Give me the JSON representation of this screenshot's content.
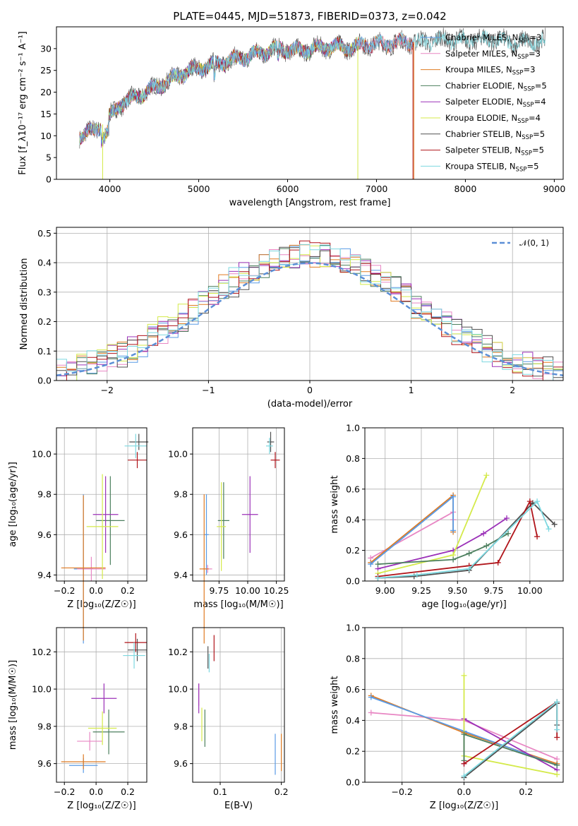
{
  "colors": {
    "Chabrier MILES": "#5a9be6",
    "Salpeter MILES": "#e887c4",
    "Kroupa MILES": "#e07b22",
    "Chabrier ELODIE": "#4c7f5e",
    "Salpeter ELODIE": "#9b30b8",
    "Kroupa ELODIE": "#d4ea4a",
    "Chabrier STELIB": "#505050",
    "Salpeter STELIB": "#b0141a",
    "Kroupa STELIB": "#7dd8e0",
    "gauss": "#5b8fd6"
  },
  "chart_data": [
    {
      "id": "spectrum",
      "type": "line",
      "title": "PLATE=0445, MJD=51873, FIBERID=0373, z=0.042",
      "xlabel": "wavelength [Angstrom, rest frame]",
      "ylabel": "Flux [f_λ10⁻¹⁷ erg cm⁻² s⁻¹ A⁻¹]",
      "xlim": [
        3400,
        9100
      ],
      "ylim": [
        0,
        35
      ],
      "xticks": [
        "4000",
        "5000",
        "6000",
        "7000",
        "8000",
        "9000"
      ],
      "yticks": [
        "0",
        "5",
        "10",
        "15",
        "20",
        "25",
        "30"
      ],
      "grid": false,
      "legend_position": "right",
      "legend": [
        {
          "name": "Chabrier MILES",
          "nssp": "3"
        },
        {
          "name": "Salpeter MILES",
          "nssp": "3"
        },
        {
          "name": "Kroupa MILES",
          "nssp": "3"
        },
        {
          "name": "Chabrier ELODIE",
          "nssp": "5"
        },
        {
          "name": "Salpeter ELODIE",
          "nssp": "4"
        },
        {
          "name": "Kroupa ELODIE",
          "nssp": "4"
        },
        {
          "name": "Chabrier STELIB",
          "nssp": "5"
        },
        {
          "name": "Salpeter STELIB",
          "nssp": "5"
        },
        {
          "name": "Kroupa STELIB",
          "nssp": "5"
        }
      ],
      "legend_suffix": ", N",
      "legend_sub": "SSP",
      "continuum": {
        "x": [
          3650,
          3800,
          3950,
          4100,
          4300,
          4500,
          4700,
          4900,
          5100,
          5300,
          5500,
          5700,
          5900,
          6100,
          6300,
          6500,
          6700,
          6900,
          7100,
          7300,
          7500,
          7700,
          7900,
          8100,
          8300,
          8500,
          8700,
          8900
        ],
        "y": [
          10,
          11,
          13,
          17,
          19,
          21,
          23,
          25,
          26,
          27,
          28,
          29,
          30,
          29.5,
          30,
          30.5,
          30.2,
          31,
          31,
          31.5,
          31.5,
          32,
          32,
          32,
          32.2,
          31.5,
          31.5,
          31.8
        ]
      },
      "drops": [
        {
          "series": "Kroupa ELODIE",
          "x": 3920
        },
        {
          "series": "Kroupa ELODIE",
          "x": 6790
        },
        {
          "series": "Salpeter STELIB",
          "x": 7410
        },
        {
          "series": "Kroupa MILES",
          "x": 7420
        }
      ]
    },
    {
      "id": "residuals",
      "type": "histogram",
      "xlabel": "(data-model)/error",
      "ylabel": "Normed distribution",
      "xlim": [
        -2.5,
        2.5
      ],
      "ylim": [
        0,
        0.52
      ],
      "xticks": [
        "−2",
        "−1",
        "0",
        "1",
        "2"
      ],
      "yticks": [
        "0.0",
        "0.1",
        "0.2",
        "0.3",
        "0.4",
        "0.5"
      ],
      "grid": true,
      "gauss_label": "𝒩(0, 1)",
      "bin_width": 0.1,
      "legend_position": "top-right"
    },
    {
      "id": "age_vs_Z",
      "type": "errorbar",
      "xlabel": "Z [log₁₀(Z/Z☉)]",
      "ylabel": "age  [log₁₀(age/yr)]",
      "xlim": [
        -0.25,
        0.32
      ],
      "ylim": [
        9.37,
        10.13
      ],
      "xticks": [
        "−0.2",
        "0.0",
        "0.2"
      ],
      "yticks": [
        "9.4",
        "9.6",
        "9.8",
        "10.0"
      ],
      "points": [
        {
          "s": "Chabrier MILES",
          "x": -0.08,
          "y": 9.43,
          "xe": 0.06,
          "ye": 0.37
        },
        {
          "s": "Salpeter MILES",
          "x": -0.03,
          "y": 9.43,
          "xe": 0.09,
          "ye": 0.06
        },
        {
          "s": "Kroupa MILES",
          "x": -0.08,
          "y": 9.435,
          "xe": 0.14,
          "ye": 0.36
        },
        {
          "s": "Chabrier ELODIE",
          "x": 0.09,
          "y": 9.67,
          "xe": 0.09,
          "ye": 0.22
        },
        {
          "s": "Salpeter ELODIE",
          "x": 0.06,
          "y": 9.7,
          "xe": 0.08,
          "ye": 0.19
        },
        {
          "s": "Kroupa ELODIE",
          "x": 0.04,
          "y": 9.64,
          "xe": 0.1,
          "ye": 0.26
        },
        {
          "s": "Chabrier STELIB",
          "x": 0.27,
          "y": 10.06,
          "xe": 0.06,
          "ye": 0.04
        },
        {
          "s": "Salpeter STELIB",
          "x": 0.26,
          "y": 9.97,
          "xe": 0.06,
          "ye": 0.04
        },
        {
          "s": "Kroupa STELIB",
          "x": 0.25,
          "y": 10.04,
          "xe": 0.07,
          "ye": 0.06
        }
      ]
    },
    {
      "id": "age_vs_mass",
      "type": "errorbar",
      "xlabel": "mass [log₁₀(M/M☉)]",
      "ylabel": "",
      "xlim": [
        9.52,
        10.32
      ],
      "ylim": [
        9.37,
        10.13
      ],
      "xticks": [
        "9.75",
        "10.00",
        "10.25"
      ],
      "yticks": [
        "9.4",
        "9.6",
        "9.8",
        "10.0"
      ],
      "points": [
        {
          "s": "Chabrier MILES",
          "x": 9.64,
          "y": 9.6,
          "xe": 0.02,
          "ye": 0.2
        },
        {
          "s": "Salpeter MILES",
          "x": 9.65,
          "y": 9.43,
          "xe": 0.04,
          "ye": 0.02
        },
        {
          "s": "Kroupa MILES",
          "x": 9.62,
          "y": 9.43,
          "xe": 0.04,
          "ye": 0.37
        },
        {
          "s": "Chabrier ELODIE",
          "x": 9.79,
          "y": 9.67,
          "xe": 0.05,
          "ye": 0.19
        },
        {
          "s": "Salpeter ELODIE",
          "x": 10.02,
          "y": 9.7,
          "xe": 0.07,
          "ye": 0.19
        },
        {
          "s": "Kroupa ELODIE",
          "x": 9.77,
          "y": 9.64,
          "xe": 0.04,
          "ye": 0.22
        },
        {
          "s": "Chabrier STELIB",
          "x": 10.2,
          "y": 10.06,
          "xe": 0.03,
          "ye": 0.05
        },
        {
          "s": "Salpeter STELIB",
          "x": 10.24,
          "y": 9.97,
          "xe": 0.04,
          "ye": 0.04
        },
        {
          "s": "Kroupa STELIB",
          "x": 10.19,
          "y": 10.04,
          "xe": 0.03,
          "ye": 0.04
        }
      ]
    },
    {
      "id": "weight_vs_age",
      "type": "line",
      "xlabel": "age  [log₁₀(age/yr)]",
      "ylabel": "mass weight",
      "xlim": [
        8.86,
        10.23
      ],
      "ylim": [
        0,
        1
      ],
      "xticks": [
        "9.00",
        "9.25",
        "9.50",
        "9.75",
        "10.00"
      ],
      "yticks": [
        "0.0",
        "0.2",
        "0.4",
        "0.6",
        "0.8",
        "1.0"
      ],
      "grid": true,
      "series": [
        {
          "s": "Salpeter MILES",
          "x": [
            8.9,
            9.47,
            9.47
          ],
          "y": [
            0.15,
            0.45,
            0.4
          ]
        },
        {
          "s": "Kroupa MILES",
          "x": [
            8.9,
            9.47,
            9.47
          ],
          "y": [
            0.12,
            0.56,
            0.32
          ]
        },
        {
          "s": "Chabrier MILES",
          "x": [
            8.9,
            9.47,
            9.47
          ],
          "y": [
            0.11,
            0.55,
            0.33
          ]
        },
        {
          "s": "Salpeter ELODIE",
          "x": [
            8.95,
            9.47,
            9.68,
            9.84
          ],
          "y": [
            0.08,
            0.2,
            0.31,
            0.41
          ]
        },
        {
          "s": "Kroupa ELODIE",
          "x": [
            8.95,
            9.47,
            9.7
          ],
          "y": [
            0.05,
            0.17,
            0.69
          ]
        },
        {
          "s": "Chabrier ELODIE",
          "x": [
            8.95,
            9.47,
            9.58,
            9.7,
            9.85
          ],
          "y": [
            0.11,
            0.14,
            0.18,
            0.23,
            0.31
          ]
        },
        {
          "s": "Chabrier STELIB",
          "x": [
            8.95,
            9.2,
            9.58,
            10.02,
            10.17
          ],
          "y": [
            0.02,
            0.03,
            0.07,
            0.51,
            0.37
          ]
        },
        {
          "s": "Salpeter STELIB",
          "x": [
            8.95,
            9.58,
            9.78,
            10.0,
            10.05
          ],
          "y": [
            0.03,
            0.1,
            0.12,
            0.52,
            0.29
          ]
        },
        {
          "s": "Kroupa STELIB",
          "x": [
            8.95,
            9.22,
            9.58,
            10.05,
            10.13
          ],
          "y": [
            0.02,
            0.04,
            0.08,
            0.52,
            0.34
          ]
        }
      ]
    },
    {
      "id": "mass_vs_Z",
      "type": "errorbar",
      "xlabel": "Z [log₁₀(Z/Z☉)]",
      "ylabel": "mass [log₁₀(M/M☉)]",
      "xlim": [
        -0.25,
        0.32
      ],
      "ylim": [
        9.5,
        10.33
      ],
      "xticks": [
        "−0.2",
        "0.0",
        "0.2"
      ],
      "yticks": [
        "9.6",
        "9.8",
        "10.0",
        "10.2"
      ],
      "points": [
        {
          "s": "Chabrier MILES",
          "x": -0.08,
          "y": 9.59,
          "xe": 0.09,
          "ye": 0.04
        },
        {
          "s": "Salpeter MILES",
          "x": -0.04,
          "y": 9.72,
          "xe": 0.08,
          "ye": 0.05
        },
        {
          "s": "Kroupa MILES",
          "x": -0.08,
          "y": 9.61,
          "xe": 0.14,
          "ye": 0.04
        },
        {
          "s": "Chabrier ELODIE",
          "x": 0.08,
          "y": 9.77,
          "xe": 0.1,
          "ye": 0.12
        },
        {
          "s": "Salpeter ELODIE",
          "x": 0.05,
          "y": 9.95,
          "xe": 0.08,
          "ye": 0.08
        },
        {
          "s": "Kroupa ELODIE",
          "x": 0.04,
          "y": 9.79,
          "xe": 0.09,
          "ye": 0.09
        },
        {
          "s": "Chabrier STELIB",
          "x": 0.26,
          "y": 10.21,
          "xe": 0.06,
          "ye": 0.06
        },
        {
          "s": "Salpeter STELIB",
          "x": 0.25,
          "y": 10.25,
          "xe": 0.07,
          "ye": 0.05
        },
        {
          "s": "Kroupa STELIB",
          "x": 0.24,
          "y": 10.18,
          "xe": 0.07,
          "ye": 0.07
        }
      ]
    },
    {
      "id": "mass_vs_ebv",
      "type": "errorbar",
      "xlabel": "E(B-V)",
      "ylabel": "",
      "xlim": [
        0.055,
        0.205
      ],
      "ylim": [
        9.5,
        10.33
      ],
      "xticks": [
        "0.1",
        "0.2"
      ],
      "yticks": [
        "9.6",
        "9.8",
        "10.0",
        "10.2"
      ],
      "points": [
        {
          "s": "Chabrier MILES",
          "x": 0.19,
          "y": 9.65,
          "xe": 0,
          "ye": 0.11
        },
        {
          "s": "Salpeter MILES",
          "x": 0.065,
          "y": 9.97,
          "xe": 0,
          "ye": 0.06
        },
        {
          "s": "Kroupa MILES",
          "x": 0.2,
          "y": 9.66,
          "xe": 0,
          "ye": 0.1
        },
        {
          "s": "Chabrier ELODIE",
          "x": 0.075,
          "y": 9.79,
          "xe": 0,
          "ye": 0.1
        },
        {
          "s": "Salpeter ELODIE",
          "x": 0.065,
          "y": 9.95,
          "xe": 0,
          "ye": 0.08
        },
        {
          "s": "Kroupa ELODIE",
          "x": 0.07,
          "y": 9.81,
          "xe": 0,
          "ye": 0.09
        },
        {
          "s": "Chabrier STELIB",
          "x": 0.08,
          "y": 10.17,
          "xe": 0,
          "ye": 0.06
        },
        {
          "s": "Salpeter STELIB",
          "x": 0.09,
          "y": 10.22,
          "xe": 0,
          "ye": 0.07
        },
        {
          "s": "Kroupa STELIB",
          "x": 0.082,
          "y": 10.14,
          "xe": 0,
          "ye": 0.05
        }
      ]
    },
    {
      "id": "weight_vs_Z",
      "type": "line",
      "xlabel": "Z [log₁₀(Z/Z☉)]",
      "ylabel": "mass weight",
      "xlim": [
        -0.32,
        0.32
      ],
      "ylim": [
        0,
        1
      ],
      "xticks": [
        "−0.2",
        "0.0",
        "0.2"
      ],
      "yticks": [
        "0.0",
        "0.2",
        "0.4",
        "0.6",
        "0.8",
        "1.0"
      ],
      "grid": true,
      "series": [
        {
          "s": "Salpeter MILES",
          "x": [
            -0.3,
            0.0,
            0.3
          ],
          "y": [
            0.45,
            0.4,
            0.15
          ]
        },
        {
          "s": "Kroupa MILES",
          "x": [
            -0.3,
            0.0,
            0.3
          ],
          "y": [
            0.56,
            0.32,
            0.12
          ]
        },
        {
          "s": "Chabrier MILES",
          "x": [
            -0.3,
            0.0,
            0.3
          ],
          "y": [
            0.55,
            0.33,
            0.11
          ]
        },
        {
          "s": "Salpeter ELODIE",
          "x": [
            0.0,
            0.0,
            0.3
          ],
          "y": [
            0.12,
            0.41,
            0.08
          ]
        },
        {
          "s": "Kroupa ELODIE",
          "x": [
            0.0,
            0.0,
            0.3
          ],
          "y": [
            0.69,
            0.17,
            0.05
          ]
        },
        {
          "s": "Chabrier ELODIE",
          "x": [
            0.0,
            0.0,
            0.3
          ],
          "y": [
            0.14,
            0.31,
            0.11
          ]
        },
        {
          "s": "Chabrier STELIB",
          "x": [
            0.0,
            0.3,
            0.3
          ],
          "y": [
            0.03,
            0.51,
            0.37
          ]
        },
        {
          "s": "Salpeter STELIB",
          "x": [
            0.0,
            0.3,
            0.3
          ],
          "y": [
            0.12,
            0.52,
            0.29
          ]
        },
        {
          "s": "Kroupa STELIB",
          "x": [
            0.0,
            0.3,
            0.3
          ],
          "y": [
            0.04,
            0.52,
            0.34
          ]
        }
      ]
    }
  ]
}
